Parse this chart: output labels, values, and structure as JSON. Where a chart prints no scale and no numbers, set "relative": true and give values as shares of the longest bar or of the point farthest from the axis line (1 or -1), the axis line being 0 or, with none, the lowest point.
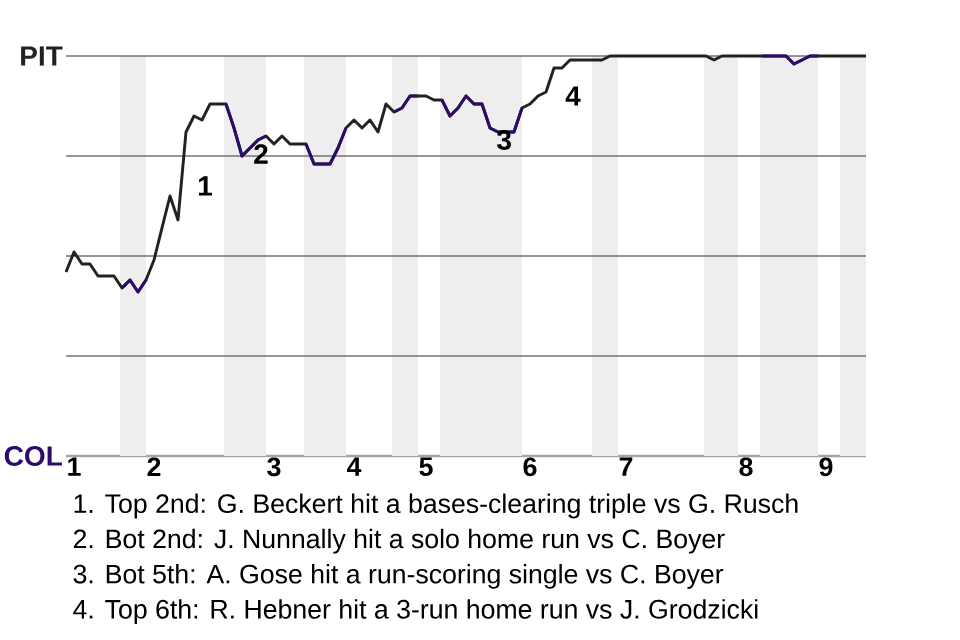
{
  "chart_data": {
    "type": "line",
    "relative": true,
    "categories": [
      null,
      "1",
      null,
      null,
      null,
      null,
      null,
      null,
      null,
      null,
      null,
      "2",
      null,
      null,
      null,
      null,
      null,
      null,
      null,
      null,
      null,
      null,
      null,
      null,
      null,
      null,
      "3",
      null,
      null,
      null,
      null,
      null,
      null,
      null,
      null,
      null,
      "4",
      null,
      null,
      null,
      null,
      null,
      null,
      null,
      null,
      "5",
      null,
      null,
      null,
      null,
      null,
      null,
      null,
      null,
      null,
      null,
      null,
      null,
      "6",
      null,
      null,
      null,
      null,
      null,
      null,
      null,
      null,
      null,
      null,
      null,
      "7",
      null,
      null,
      null,
      null,
      null,
      null,
      null,
      null,
      null,
      null,
      null,
      null,
      null,
      null,
      "8",
      null,
      null,
      null,
      null,
      null,
      null,
      null,
      null,
      null,
      "9",
      null,
      null,
      null,
      null,
      null
    ],
    "series": [
      {
        "color": "#222222",
        "values": [
          0.46,
          0.51,
          0.48,
          0.48,
          0.45,
          0.45,
          0.45,
          0.42,
          0.44,
          0.41,
          0.44,
          0.49,
          0.57,
          0.65,
          0.59,
          0.81,
          0.85,
          0.84,
          0.88,
          0.88,
          0.88,
          0.82,
          0.75,
          0.77,
          0.79,
          0.8,
          0.78,
          0.8,
          0.78,
          0.78,
          0.78,
          0.73,
          0.73,
          0.73,
          0.77,
          0.82,
          0.84,
          0.82,
          0.84,
          0.81,
          0.88,
          0.86,
          0.87,
          0.9,
          0.9,
          0.9,
          0.89,
          0.89,
          0.85,
          0.87,
          0.9,
          0.88,
          0.88,
          0.82,
          0.81,
          0.81,
          0.81,
          0.87,
          0.88,
          0.9,
          0.91,
          0.97,
          0.97,
          0.99,
          0.99,
          0.99,
          0.99,
          0.99,
          1,
          1,
          1,
          1,
          1,
          1,
          1,
          1,
          1,
          1,
          1,
          1,
          1,
          0.99,
          1,
          1,
          1,
          1,
          1,
          1,
          1,
          1,
          1,
          0.98,
          0.99,
          1,
          1,
          1,
          1,
          1,
          1,
          1,
          1
        ]
      },
      {
        "color": "#2e0a6b",
        "values": [
          null,
          null,
          null,
          null,
          null,
          null,
          null,
          0.42,
          0.44,
          0.41,
          0.44,
          null,
          null,
          null,
          null,
          null,
          null,
          null,
          null,
          null,
          0.88,
          0.82,
          0.75,
          0.77,
          0.79,
          0.8,
          null,
          null,
          null,
          null,
          0.78,
          0.73,
          0.73,
          0.73,
          0.77,
          0.82,
          null,
          null,
          null,
          null,
          null,
          0.86,
          0.87,
          0.9,
          0.9,
          null,
          null,
          0.89,
          0.85,
          0.87,
          0.9,
          0.88,
          0.88,
          0.82,
          0.81,
          0.81,
          0.81,
          0.87,
          null,
          null,
          null,
          null,
          null,
          null,
          null,
          null,
          null,
          null,
          null,
          null,
          null,
          null,
          null,
          null,
          null,
          null,
          null,
          null,
          null,
          null,
          null,
          null,
          null,
          null,
          null,
          null,
          null,
          1,
          1,
          1,
          1,
          0.98,
          0.99,
          1,
          1,
          null,
          null,
          null,
          null,
          null,
          null
        ]
      }
    ],
    "grid": "y",
    "annotations": [
      "1",
      "2",
      "3",
      "4",
      "PIT",
      "COL",
      "1. Top 2nd: G. Beckert hit a bases-clearing triple vs G. Rusch",
      "2. Bot 2nd: J. Nunnally hit a solo home run vs C. Boyer",
      "3. Bot 5th: A. Gose hit a run-scoring single vs C. Boyer",
      "4. Top 6th: R. Hebner hit a 3-run home run vs J. Grodzicki"
    ],
    "marker": "none",
    "line_style": "solid"
  }
}
